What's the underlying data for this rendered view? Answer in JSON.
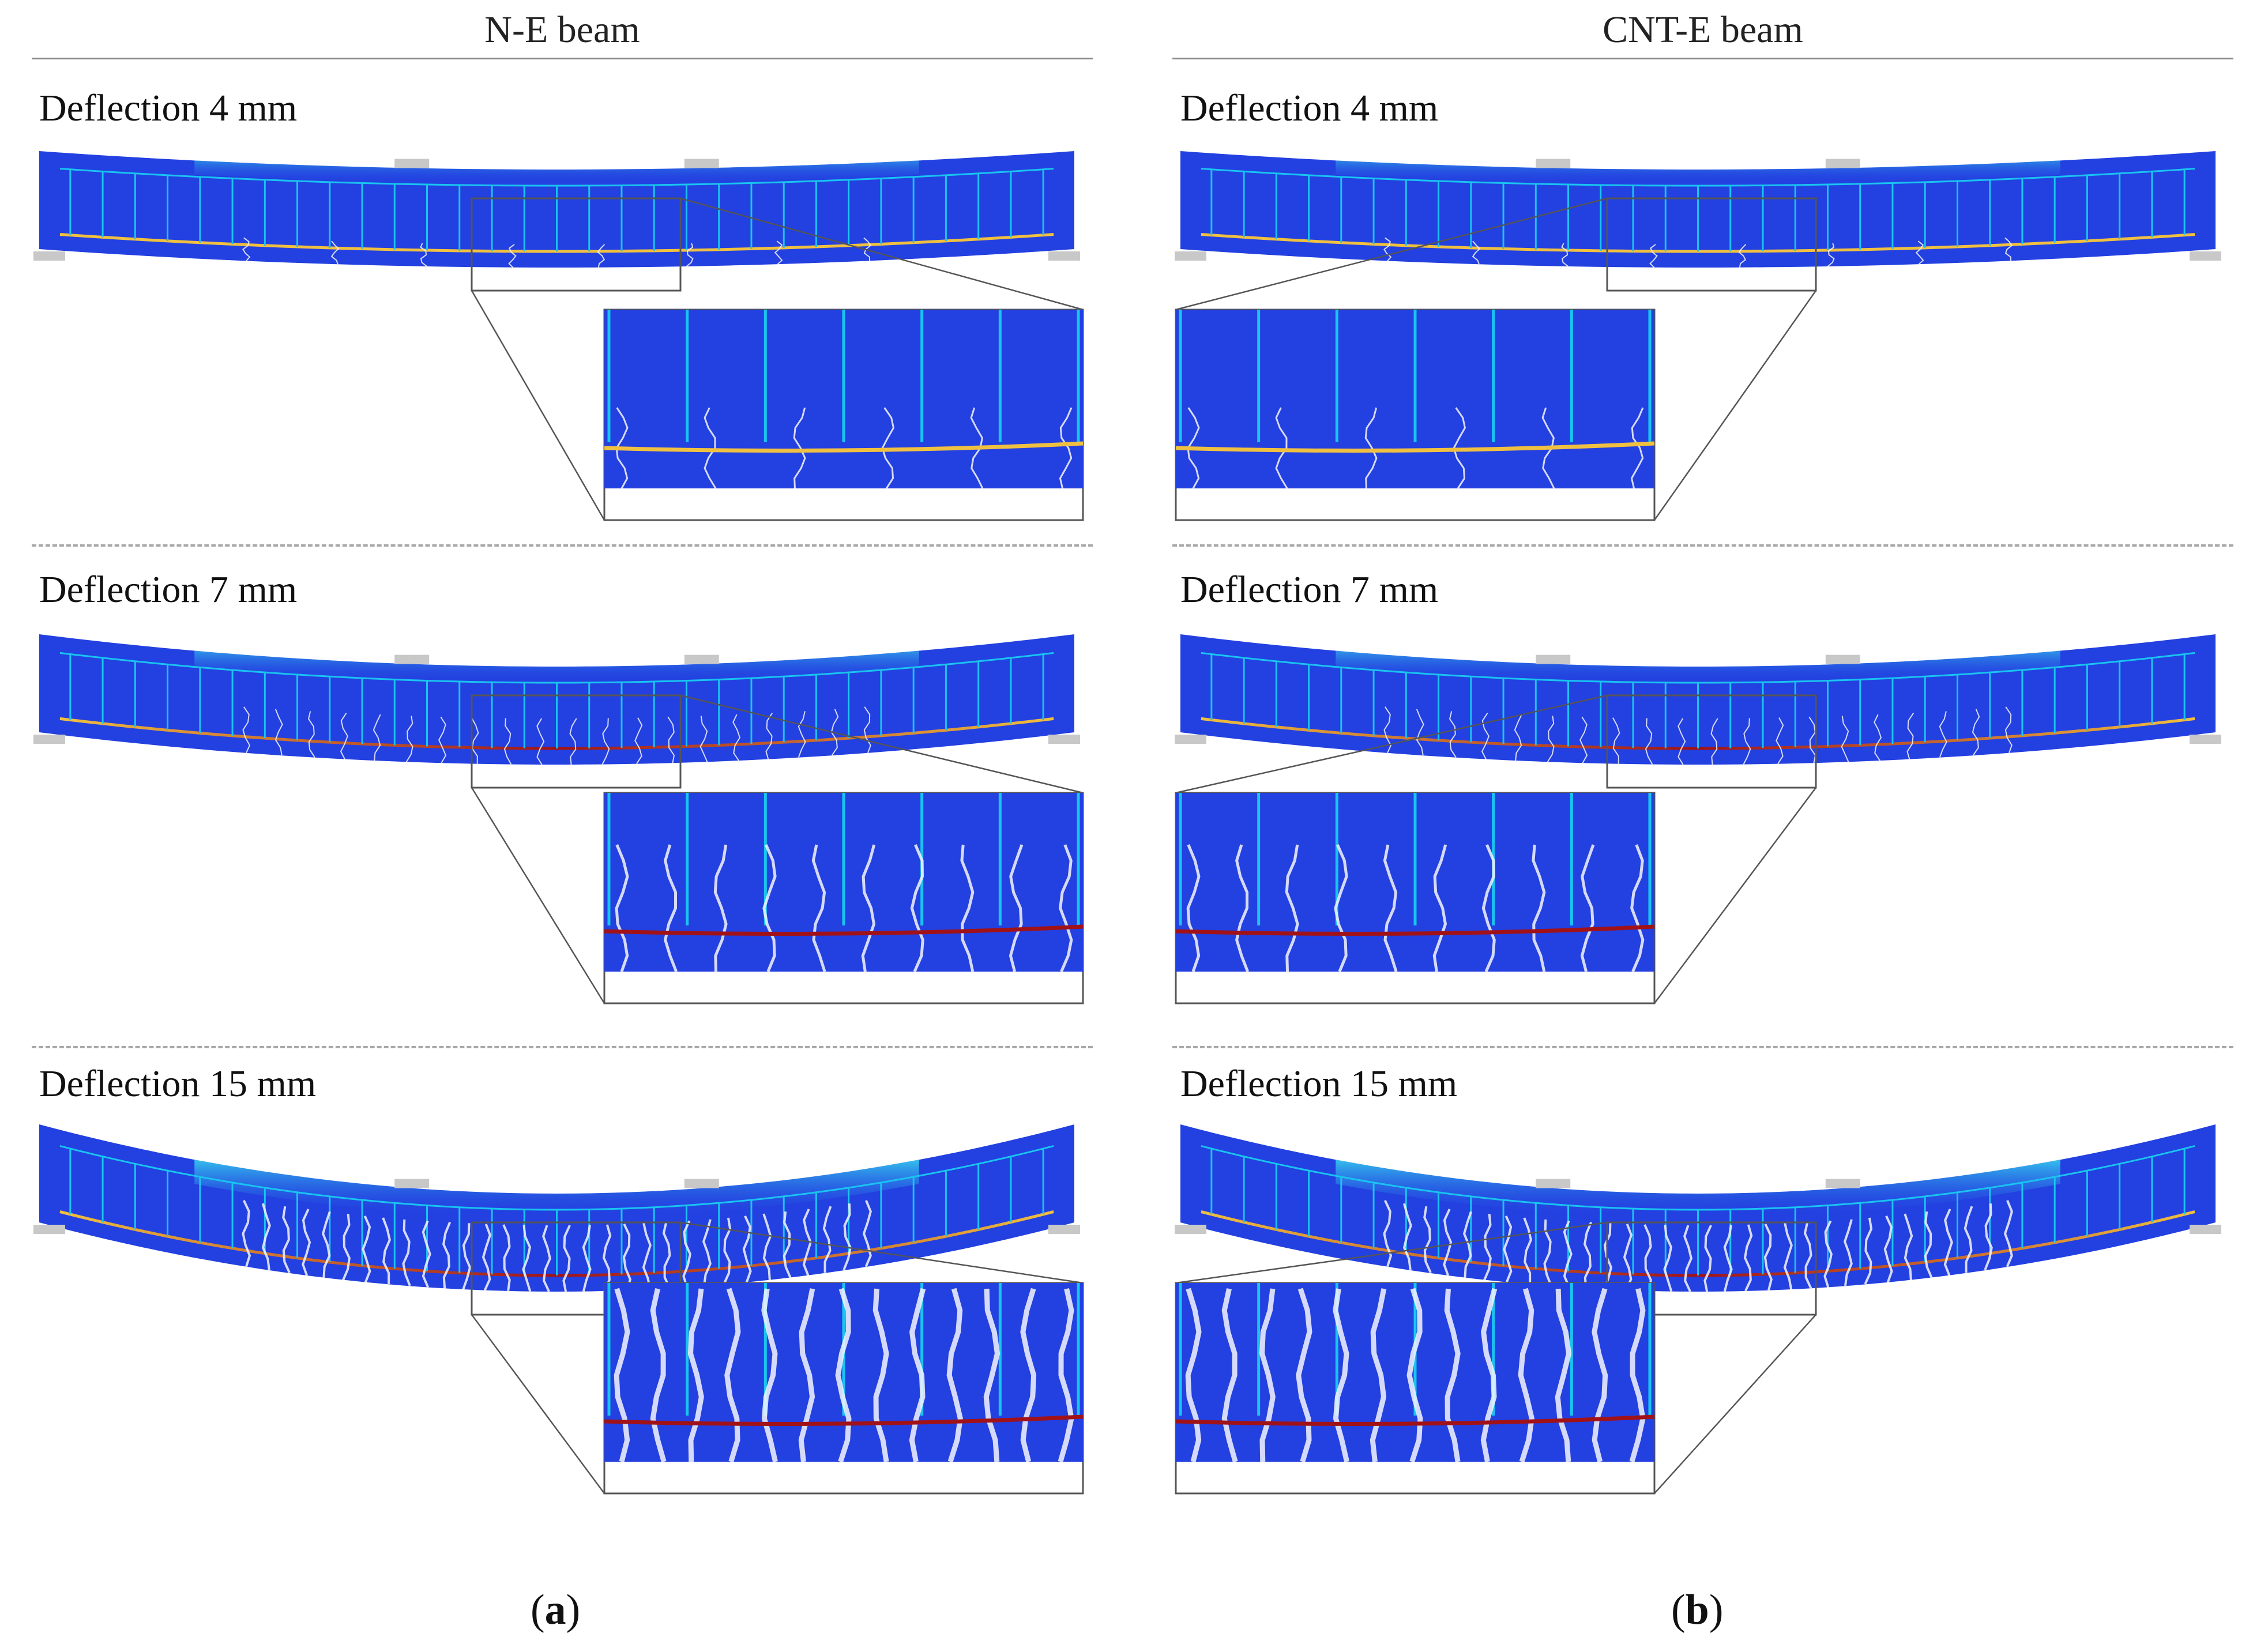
{
  "columns": [
    {
      "title": "N-E beam",
      "panel_letter": "a"
    },
    {
      "title": "CNT-E beam",
      "panel_letter": "b"
    }
  ],
  "rows": [
    {
      "label": "Deflection 4 mm",
      "deflection_mm": 4
    },
    {
      "label": "Deflection 7 mm",
      "deflection_mm": 7
    },
    {
      "label": "Deflection 15 mm",
      "deflection_mm": 15
    }
  ],
  "colors": {
    "beam": "#2340e0",
    "beam_dark": "#1b2fc2",
    "stirrup": "#19c4f0",
    "compression": "#39e0f0",
    "rebar_low": "#f0c040",
    "rebar_high": "#a01218",
    "crack": "#f4f6ff",
    "support": "#c8c8c8"
  },
  "legend_marks": {
    "open": "(",
    "close": ")"
  }
}
